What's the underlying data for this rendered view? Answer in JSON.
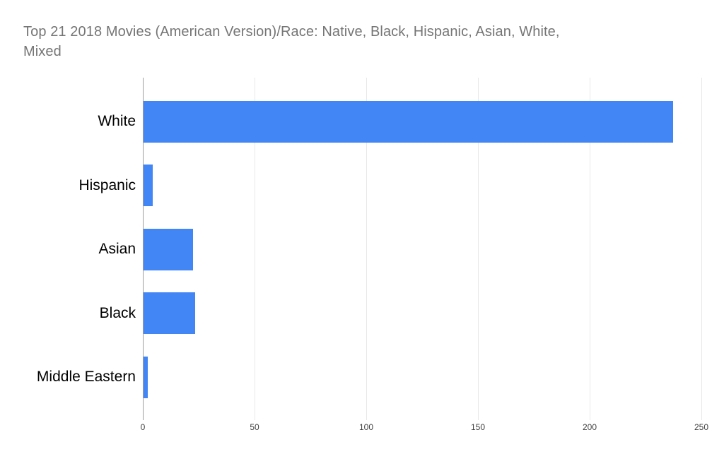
{
  "title": {
    "line1": "Top 21 2018 Movies (American Version)/Race: Native, Black, Hispanic, Asian, White,",
    "line2": "Mixed"
  },
  "colors": {
    "bar": "#4285F4",
    "title_text": "#757575",
    "category_text": "#000000",
    "tick_text": "#424242",
    "axis_line": "#9e9e9e",
    "gridline": "#e8e8e8",
    "background": "#ffffff"
  },
  "chart_data": {
    "type": "bar",
    "orientation": "horizontal",
    "title": "Top 21 2018 Movies (American Version)/Race: Native, Black, Hispanic, Asian, White, Mixed",
    "categories": [
      "White",
      "Hispanic",
      "Asian",
      "Black",
      "Middle Eastern"
    ],
    "values": [
      237,
      4,
      22,
      23,
      2
    ],
    "xlabel": "",
    "ylabel": "",
    "xlim": [
      0,
      250
    ],
    "xticks": [
      0,
      50,
      100,
      150,
      200,
      250
    ],
    "grid": true,
    "legend": "none"
  }
}
